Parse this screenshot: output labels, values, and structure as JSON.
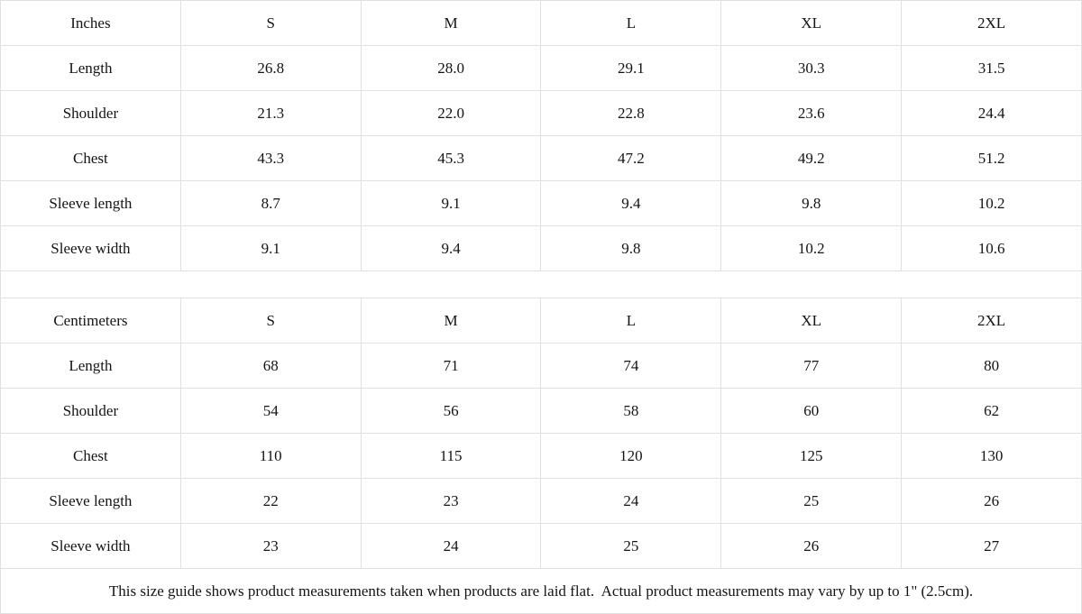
{
  "colors": {
    "header_bg": "#f1f1f1",
    "cell_bg": "#ffffff",
    "border": "#e0e0e0",
    "text": "#141414"
  },
  "tables": [
    {
      "unit_label": "Inches",
      "size_headers": [
        "S",
        "M",
        "L",
        "XL",
        "2XL"
      ],
      "rows": [
        {
          "label": "Length",
          "values": [
            "26.8",
            "28.0",
            "29.1",
            "30.3",
            "31.5"
          ]
        },
        {
          "label": "Shoulder",
          "values": [
            "21.3",
            "22.0",
            "22.8",
            "23.6",
            "24.4"
          ]
        },
        {
          "label": "Chest",
          "values": [
            "43.3",
            "45.3",
            "47.2",
            "49.2",
            "51.2"
          ]
        },
        {
          "label": "Sleeve length",
          "values": [
            "8.7",
            "9.1",
            "9.4",
            "9.8",
            "10.2"
          ]
        },
        {
          "label": "Sleeve width",
          "values": [
            "9.1",
            "9.4",
            "9.8",
            "10.2",
            "10.6"
          ]
        }
      ]
    },
    {
      "unit_label": "Centimeters",
      "size_headers": [
        "S",
        "M",
        "L",
        "XL",
        "2XL"
      ],
      "rows": [
        {
          "label": "Length",
          "values": [
            "68",
            "71",
            "74",
            "77",
            "80"
          ]
        },
        {
          "label": "Shoulder",
          "values": [
            "54",
            "56",
            "58",
            "60",
            "62"
          ]
        },
        {
          "label": "Chest",
          "values": [
            "110",
            "115",
            "120",
            "125",
            "130"
          ]
        },
        {
          "label": "Sleeve length",
          "values": [
            "22",
            "23",
            "24",
            "25",
            "26"
          ]
        },
        {
          "label": "Sleeve width",
          "values": [
            "23",
            "24",
            "25",
            "26",
            "27"
          ]
        }
      ]
    }
  ],
  "footer_note": "This size guide shows product measurements taken when products are laid flat.  Actual product measurements may vary by up to 1\" (2.5cm)."
}
